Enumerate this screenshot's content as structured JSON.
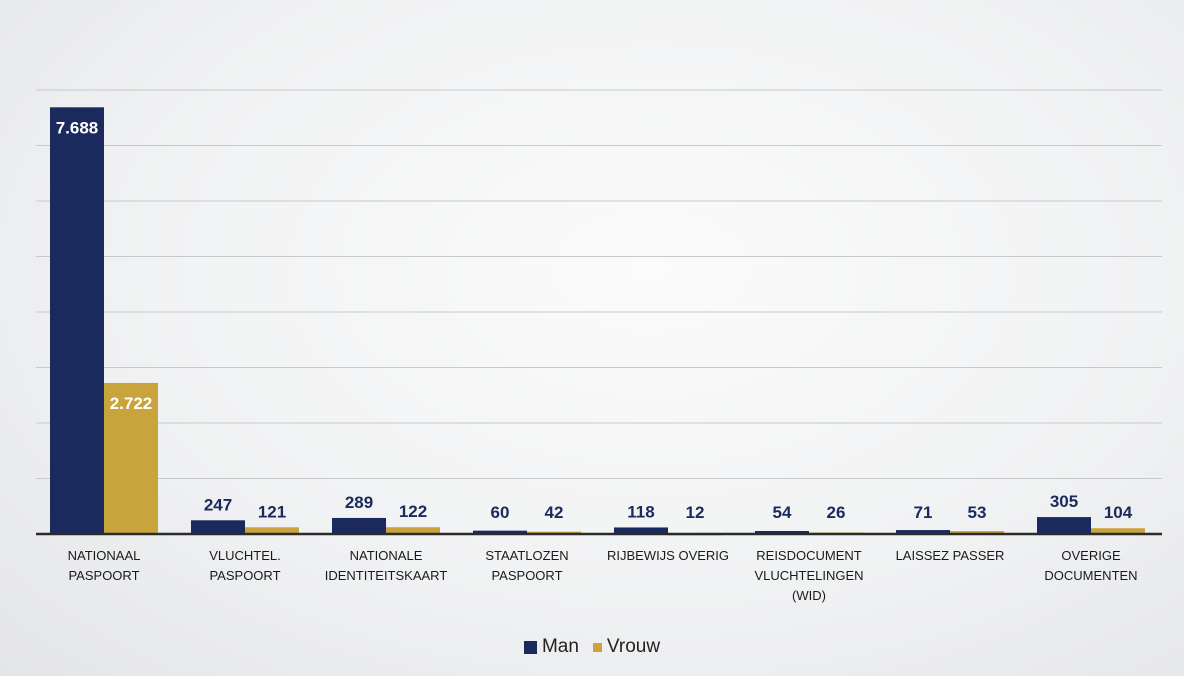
{
  "chart_data": {
    "type": "bar",
    "categories": [
      [
        "NATIONAAL",
        "PASPOORT"
      ],
      [
        "VLUCHTEL.",
        "PASPOORT"
      ],
      [
        "NATIONALE",
        "IDENTITEITSKAART"
      ],
      [
        "STAATLOZEN",
        "PASPOORT"
      ],
      [
        "RIJBEWIJS OVERIG"
      ],
      [
        "REISDOCUMENT",
        "VLUCHTELINGEN",
        "(WID)"
      ],
      [
        "LAISSEZ PASSER"
      ],
      [
        "OVERIGE",
        "DOCUMENTEN"
      ]
    ],
    "series": [
      {
        "name": "Man",
        "color": "#1b2a5c",
        "values": [
          7688,
          247,
          289,
          60,
          118,
          54,
          71,
          305
        ],
        "labels": [
          "7.688",
          "247",
          "289",
          "60",
          "118",
          "54",
          "71",
          "305"
        ]
      },
      {
        "name": "Vrouw",
        "color": "#c9a43c",
        "values": [
          2722,
          121,
          122,
          42,
          12,
          26,
          53,
          104
        ],
        "labels": [
          "2.722",
          "121",
          "122",
          "42",
          "12",
          "26",
          "53",
          "104"
        ]
      }
    ],
    "ylim": [
      0,
      8000
    ],
    "grid": true,
    "legend_position": "bottom"
  },
  "legend": {
    "man": "Man",
    "vrouw": "Vrouw"
  }
}
